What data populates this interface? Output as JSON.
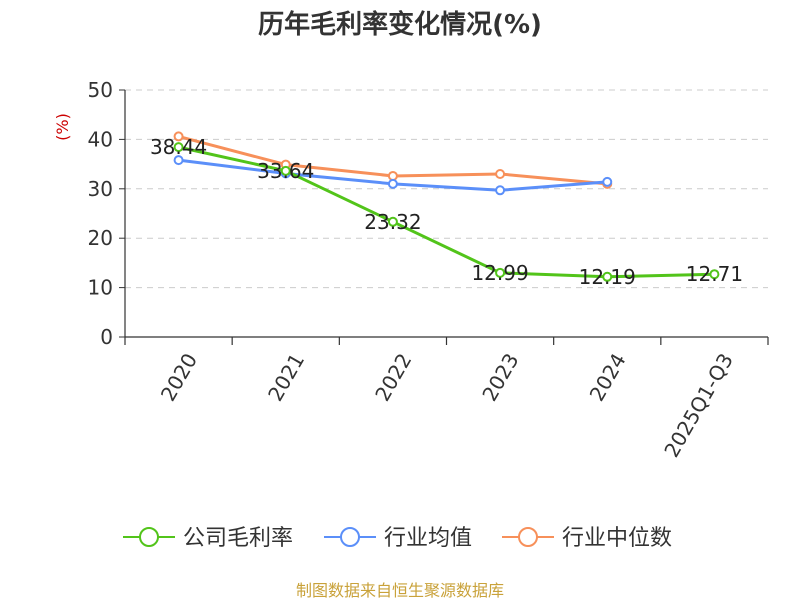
{
  "chart_data": {
    "type": "line",
    "title": "历年毛利率变化情况(%)",
    "ylabel": "(%)",
    "ylabel_color": "#cc0000",
    "categories": [
      "2020",
      "2021",
      "2022",
      "2023",
      "2024",
      "2025Q1-Q3"
    ],
    "ylim": [
      0,
      50
    ],
    "yticks": [
      0,
      10,
      20,
      30,
      40,
      50
    ],
    "grid": true,
    "legend_position": "bottom",
    "series": [
      {
        "name": "公司毛利率",
        "color": "#52c41a",
        "values": [
          38.44,
          33.64,
          23.32,
          12.99,
          12.19,
          12.71
        ],
        "labels": [
          "38.44",
          "33.64",
          "23.32",
          "12.99",
          "12.19",
          "12.71"
        ]
      },
      {
        "name": "行业均值",
        "color": "#5b8ff9",
        "values": [
          35.8,
          33.1,
          31.0,
          29.7,
          31.4,
          null
        ]
      },
      {
        "name": "行业中位数",
        "color": "#f7905a",
        "values": [
          40.6,
          34.9,
          32.6,
          33.0,
          31.0,
          null
        ]
      }
    ]
  },
  "source": {
    "text": "制图数据来自恒生聚源数据库",
    "color": "#c9a23a"
  }
}
